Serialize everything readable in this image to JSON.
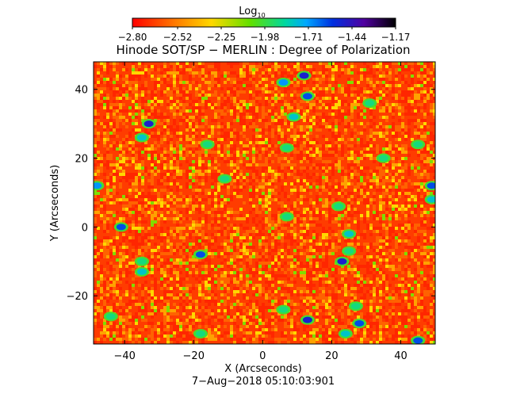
{
  "chart_data": {
    "type": "heatmap",
    "title": "Hinode SOT/SP − MERLIN : Degree of Polarization",
    "subtitle": "7−Aug−2018 05:10:03:901",
    "xlabel": "X (Arcseconds)",
    "ylabel": "Y (Arcseconds)",
    "xlim": [
      -49,
      50
    ],
    "ylim": [
      -34,
      48
    ],
    "x_ticks": [
      -40,
      -20,
      0,
      20,
      40
    ],
    "y_ticks": [
      -20,
      0,
      20,
      40
    ],
    "x_tick_labels": [
      "−40",
      "−20",
      "0",
      "20",
      "40"
    ],
    "y_tick_labels": [
      "−20",
      "0",
      "20",
      "40"
    ],
    "colorbar": {
      "label_base": "Log",
      "label_sub": "10",
      "range": [
        -2.8,
        -1.17
      ],
      "ticks": [
        -2.8,
        -2.52,
        -2.25,
        -1.98,
        -1.71,
        -1.44,
        -1.17
      ],
      "tick_labels": [
        "−2.80",
        "−2.52",
        "−2.25",
        "−1.98",
        "−1.71",
        "−1.44",
        "−1.17"
      ],
      "colormap": "rainbow-reversed"
    },
    "grid": false,
    "features": [
      {
        "x": -33,
        "y": 30,
        "value": -1.5
      },
      {
        "x": -35,
        "y": 26,
        "value": -1.8
      },
      {
        "x": -16,
        "y": 24,
        "value": -1.9
      },
      {
        "x": 6,
        "y": 42,
        "value": -1.7
      },
      {
        "x": 12,
        "y": 44,
        "value": -1.5
      },
      {
        "x": 13,
        "y": 38,
        "value": -1.6
      },
      {
        "x": 9,
        "y": 32,
        "value": -1.8
      },
      {
        "x": 7,
        "y": 23,
        "value": -1.9
      },
      {
        "x": 45,
        "y": 24,
        "value": -1.9
      },
      {
        "x": 49,
        "y": 12,
        "value": -1.6
      },
      {
        "x": -48,
        "y": 12,
        "value": -1.7
      },
      {
        "x": 22,
        "y": 6,
        "value": -1.9
      },
      {
        "x": 7,
        "y": 3,
        "value": -1.9
      },
      {
        "x": -41,
        "y": 0,
        "value": -1.6
      },
      {
        "x": 49,
        "y": 8,
        "value": -1.8
      },
      {
        "x": -35,
        "y": -10,
        "value": -1.9
      },
      {
        "x": -35,
        "y": -13,
        "value": -1.8
      },
      {
        "x": -18,
        "y": -8,
        "value": -1.6
      },
      {
        "x": 25,
        "y": -7,
        "value": -1.9
      },
      {
        "x": 23,
        "y": -10,
        "value": -1.5
      },
      {
        "x": 25,
        "y": -2,
        "value": -1.8
      },
      {
        "x": 6,
        "y": -24,
        "value": -1.9
      },
      {
        "x": 13,
        "y": -27,
        "value": -1.5
      },
      {
        "x": 28,
        "y": -28,
        "value": -1.6
      },
      {
        "x": 27,
        "y": -23,
        "value": -1.9
      },
      {
        "x": 24,
        "y": -31,
        "value": -1.8
      },
      {
        "x": 45,
        "y": -33,
        "value": -1.6
      },
      {
        "x": -18,
        "y": -31,
        "value": -1.9
      },
      {
        "x": -44,
        "y": -26,
        "value": -1.9
      },
      {
        "x": -11,
        "y": 14,
        "value": -1.9
      },
      {
        "x": 35,
        "y": 20,
        "value": -1.9
      },
      {
        "x": 31,
        "y": 36,
        "value": -1.9
      }
    ]
  }
}
